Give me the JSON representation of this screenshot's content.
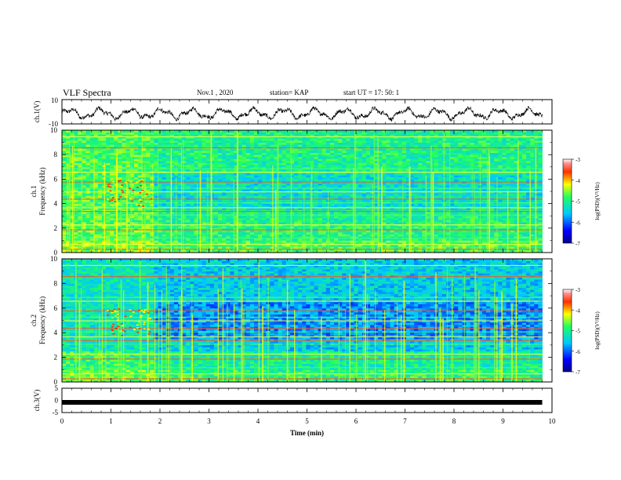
{
  "header": {
    "title": "VLF Spectra",
    "date": "Nov.1 , 2020",
    "station": "station= KAP",
    "start": "start UT = 17: 50: 1"
  },
  "chart_data": [
    {
      "type": "line",
      "name": "ch1-waveform",
      "ylabel": "ch.1(V)",
      "ylim": [
        -10,
        10
      ],
      "yticks": [
        "10",
        "-10"
      ],
      "xlim": [
        0,
        10
      ],
      "note_values": "oscillating waveform roughly between -8 and 5 V across 0 to 9.8 min"
    },
    {
      "type": "heatmap",
      "name": "ch1-spectrogram",
      "ylabel": "Frequency (kHz)",
      "ylabel_channel": "ch.1",
      "ylim": [
        0,
        10
      ],
      "yticks": [
        "0",
        "2",
        "4",
        "6",
        "8",
        "10"
      ],
      "xlim": [
        0,
        10
      ],
      "colorbar": {
        "label": "log(PSD)(V²/Hz)",
        "range": [
          -7,
          -3
        ],
        "ticks": [
          "-3",
          "-4",
          "-5",
          "-6",
          "-7"
        ]
      }
    },
    {
      "type": "heatmap",
      "name": "ch2-spectrogram",
      "ylabel": "Frequency (kHz)",
      "ylabel_channel": "ch.2",
      "ylim": [
        0,
        10
      ],
      "yticks": [
        "0",
        "2",
        "4",
        "6",
        "8",
        "10"
      ],
      "xlim": [
        0,
        10
      ],
      "colorbar": {
        "label": "log(PSD)(V²/Hz)",
        "range": [
          -7,
          -3
        ],
        "ticks": [
          "-3",
          "-4",
          "-5",
          "-6",
          "-7"
        ]
      }
    },
    {
      "type": "line",
      "name": "ch3-waveform",
      "ylabel": "ch.3(V)",
      "ylim": [
        -5,
        5
      ],
      "yticks": [
        "5",
        "0",
        "-5"
      ],
      "xlim": [
        0,
        10
      ],
      "value": -0.8
    }
  ],
  "xaxis": {
    "label": "Time (min)",
    "ticks": [
      "0",
      "1",
      "2",
      "3",
      "4",
      "5",
      "6",
      "7",
      "8",
      "9",
      "10"
    ]
  }
}
